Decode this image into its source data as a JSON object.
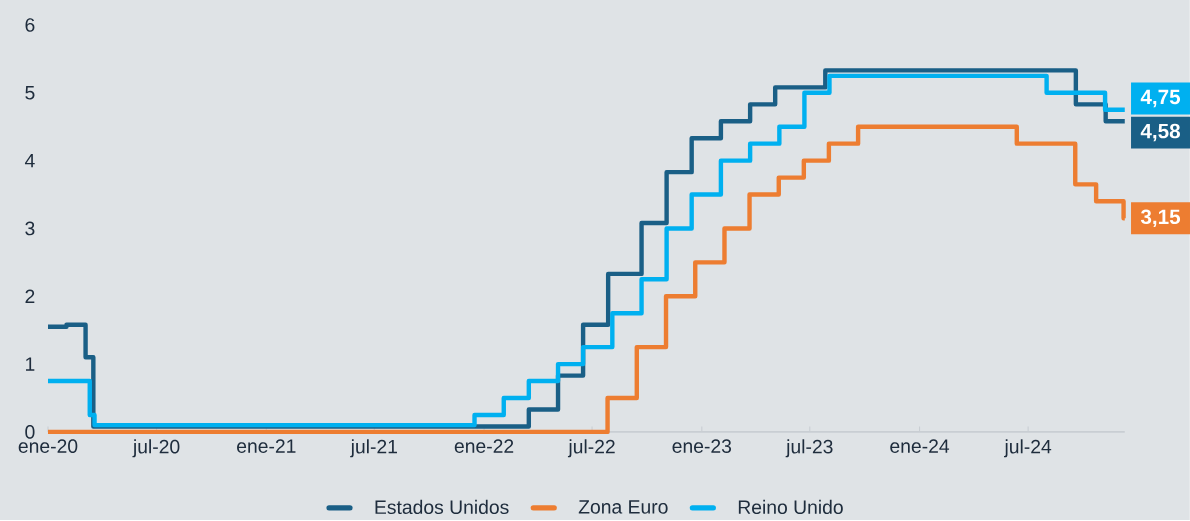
{
  "chart_data": {
    "type": "step",
    "xlim": [
      "2020-01-01",
      "2024-12-10"
    ],
    "xticks": [
      {
        "value": "2020-01-01",
        "label": "ene-20"
      },
      {
        "value": "2020-07-01",
        "label": "jul-20"
      },
      {
        "value": "2021-01-01",
        "label": "ene-21"
      },
      {
        "value": "2021-07-01",
        "label": "jul-21"
      },
      {
        "value": "2022-01-01",
        "label": "ene-22"
      },
      {
        "value": "2022-07-01",
        "label": "jul-22"
      },
      {
        "value": "2023-01-01",
        "label": "ene-23"
      },
      {
        "value": "2023-07-01",
        "label": "jul-23"
      },
      {
        "value": "2024-01-01",
        "label": "ene-24"
      },
      {
        "value": "2024-07-01",
        "label": "jul-24"
      }
    ],
    "ylim": [
      0,
      6
    ],
    "yticks": [
      0,
      1,
      2,
      3,
      4,
      5,
      6
    ],
    "legend": "bottom",
    "series": [
      {
        "name": "Estados Unidos",
        "color": "#1a5f86",
        "x": [
          "2020-01-01",
          "2020-02-01",
          "2020-03-04",
          "2020-03-17",
          "2022-03-17",
          "2022-05-05",
          "2022-06-16",
          "2022-07-28",
          "2022-09-22",
          "2022-11-03",
          "2022-12-15",
          "2023-02-02",
          "2023-03-23",
          "2023-05-04",
          "2023-07-27",
          "2024-09-19",
          "2024-11-08",
          "2024-12-10"
        ],
        "values": [
          1.55,
          1.58,
          1.1,
          0.08,
          0.33,
          0.83,
          1.58,
          2.33,
          3.08,
          3.83,
          4.33,
          4.58,
          4.83,
          5.08,
          5.33,
          4.83,
          4.58,
          4.58
        ],
        "value_labels": [
          null,
          null,
          null,
          null,
          null,
          null,
          null,
          null,
          null,
          null,
          null,
          null,
          null,
          null,
          null,
          null,
          null,
          "4,58"
        ]
      },
      {
        "name": "Zona Euro",
        "color": "#ed7d31",
        "x": [
          "2020-01-01",
          "2022-07-27",
          "2022-09-14",
          "2022-11-02",
          "2022-12-21",
          "2023-02-08",
          "2023-03-22",
          "2023-05-10",
          "2023-06-21",
          "2023-08-02",
          "2023-09-20",
          "2024-06-12",
          "2024-09-18",
          "2024-10-23",
          "2024-12-08",
          "2024-12-10"
        ],
        "values": [
          0,
          0.5,
          1.25,
          2.0,
          2.5,
          3.0,
          3.5,
          3.75,
          4.0,
          4.25,
          4.5,
          4.25,
          3.65,
          3.4,
          3.15,
          3.15
        ],
        "value_labels": [
          null,
          null,
          null,
          null,
          null,
          null,
          null,
          null,
          null,
          null,
          null,
          null,
          null,
          null,
          null,
          "3,15"
        ]
      },
      {
        "name": "Reino Unido",
        "color": "#00b0f0",
        "x": [
          "2020-01-01",
          "2020-03-11",
          "2020-03-19",
          "2021-12-16",
          "2022-02-03",
          "2022-03-17",
          "2022-05-05",
          "2022-06-16",
          "2022-08-04",
          "2022-09-22",
          "2022-11-03",
          "2022-12-15",
          "2023-02-02",
          "2023-03-23",
          "2023-05-11",
          "2023-06-22",
          "2023-08-03",
          "2024-08-01",
          "2024-11-07",
          "2024-12-10"
        ],
        "values": [
          0.75,
          0.25,
          0.1,
          0.25,
          0.5,
          0.75,
          1.0,
          1.25,
          1.75,
          2.25,
          3.0,
          3.5,
          4.0,
          4.25,
          4.5,
          5.0,
          5.25,
          5.0,
          4.75,
          4.75
        ],
        "value_labels": [
          null,
          null,
          null,
          null,
          null,
          null,
          null,
          null,
          null,
          null,
          null,
          null,
          null,
          null,
          null,
          null,
          null,
          null,
          null,
          "4,75"
        ]
      }
    ]
  }
}
